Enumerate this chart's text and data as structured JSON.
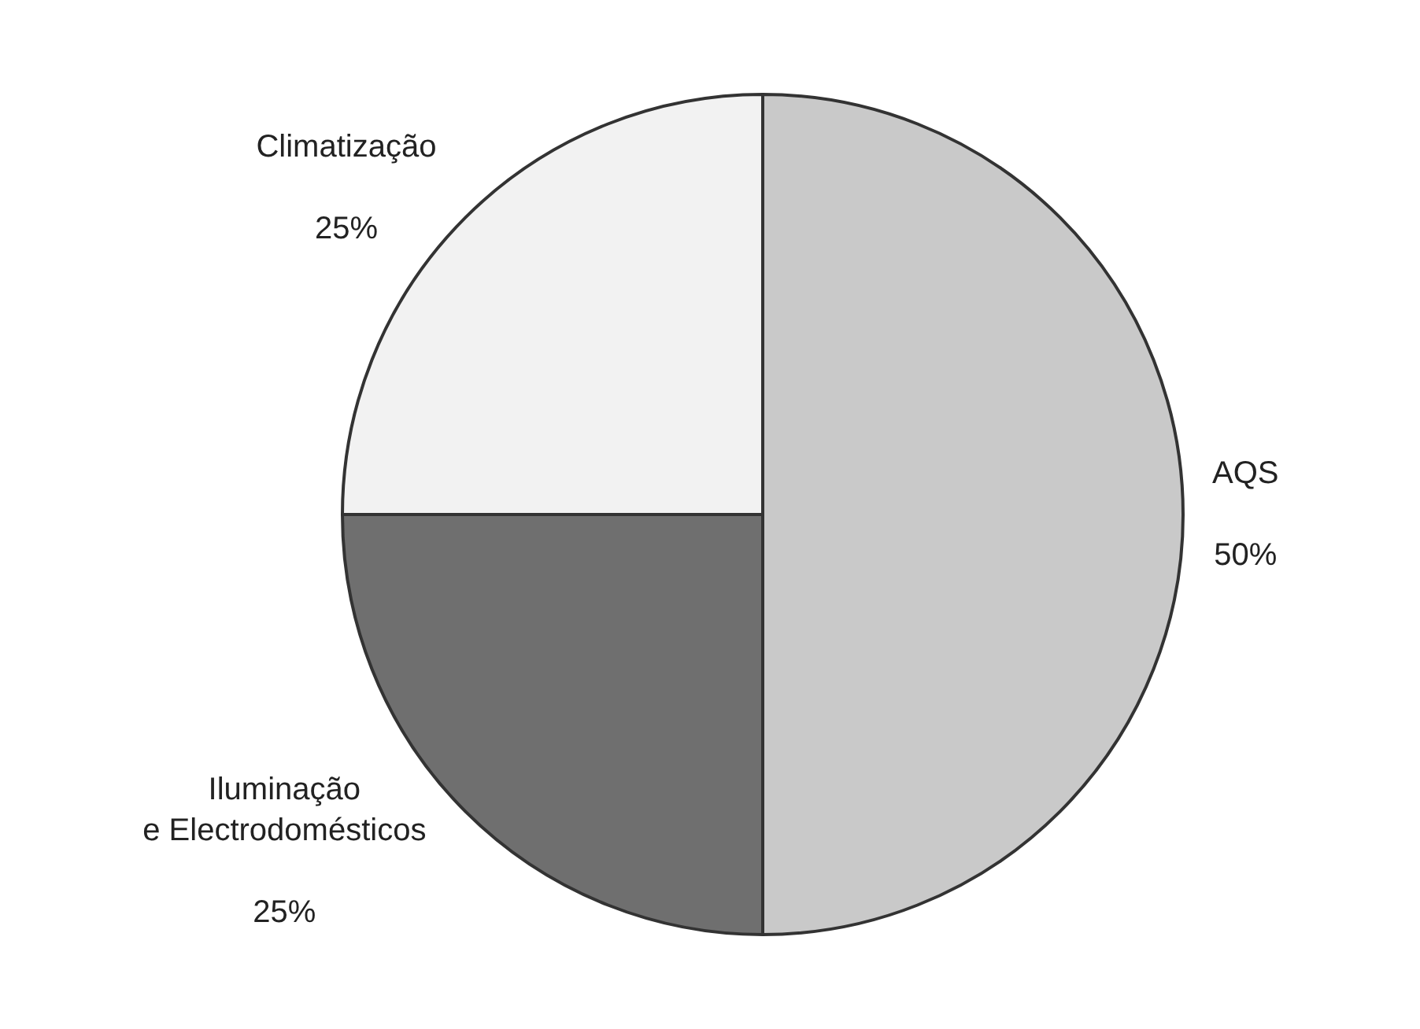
{
  "chart_data": {
    "type": "pie",
    "categories": [
      "AQS",
      "Iluminação\ne Electrodomésticos",
      "Climatização"
    ],
    "values": [
      50,
      25,
      25
    ],
    "value_labels": [
      "50%",
      "25%",
      "25%"
    ],
    "colors": [
      "#c9c9c9",
      "#6f6f6f",
      "#f2f2f2"
    ],
    "legend": false
  }
}
